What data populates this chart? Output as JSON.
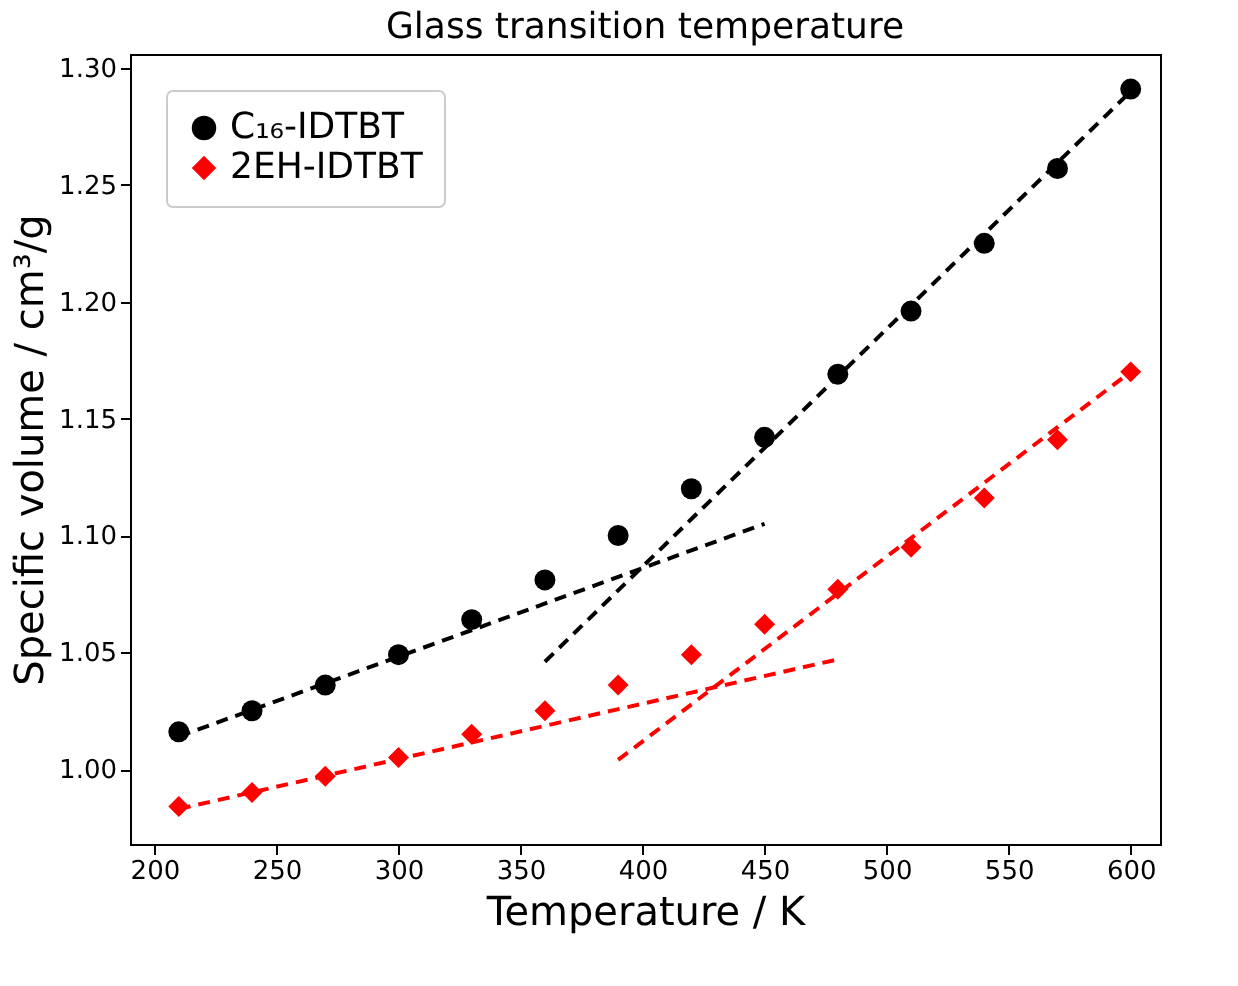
{
  "chart_data": {
    "type": "scatter",
    "title": "Glass transition temperature",
    "xlabel": "Temperature / K",
    "ylabel": "Specific volume / cm³/g",
    "xlim": [
      190,
      612
    ],
    "xticks": [
      200,
      250,
      300,
      350,
      400,
      450,
      500,
      550,
      600
    ],
    "ylim": [
      0.968,
      1.306
    ],
    "yticks": [
      {
        "value": 1.0,
        "label": "1.00"
      },
      1.05,
      {
        "value": 1.1,
        "label": "1.10"
      },
      1.15,
      {
        "value": 1.2,
        "label": "1.20"
      },
      1.25,
      {
        "value": 1.3,
        "label": "1.30"
      }
    ],
    "legend": "top left",
    "grid": false,
    "series": [
      {
        "name": "C₁₆-IDTBT",
        "marker": "circle",
        "color": "#000000",
        "x": [
          210,
          240,
          270,
          300,
          330,
          360,
          390,
          420,
          450,
          480,
          510,
          540,
          570,
          600
        ],
        "values": [
          1.016,
          1.025,
          1.036,
          1.049,
          1.064,
          1.081,
          1.1,
          1.12,
          1.142,
          1.169,
          1.196,
          1.225,
          1.257,
          1.291
        ]
      },
      {
        "name": "2EH-IDTBT",
        "marker": "diamond",
        "color": "#ff0000",
        "x": [
          210,
          240,
          270,
          300,
          330,
          360,
          390,
          420,
          450,
          480,
          510,
          540,
          570,
          600
        ],
        "values": [
          0.984,
          0.99,
          0.997,
          1.005,
          1.015,
          1.025,
          1.036,
          1.049,
          1.062,
          1.077,
          1.095,
          1.116,
          1.141,
          1.17
        ]
      },
      {
        "type": "line",
        "line_style": "dashed",
        "color": "#000000",
        "x": [
          210,
          450
        ],
        "values": [
          1.014,
          1.105
        ]
      },
      {
        "type": "line",
        "line_style": "dashed",
        "color": "#000000",
        "x": [
          360,
          600
        ],
        "values": [
          1.046,
          1.29
        ]
      },
      {
        "type": "line",
        "line_style": "dashed",
        "color": "#ff0000",
        "x": [
          210,
          480
        ],
        "values": [
          0.983,
          1.047
        ]
      },
      {
        "type": "line",
        "line_style": "dashed",
        "color": "#ff0000",
        "x": [
          390,
          600
        ],
        "values": [
          1.004,
          1.17
        ]
      }
    ]
  }
}
